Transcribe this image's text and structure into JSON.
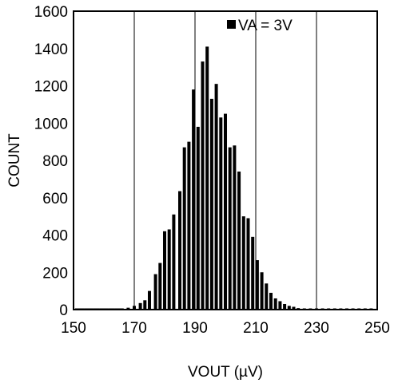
{
  "chart_data": {
    "type": "bar",
    "xlabel": "VOUT (µV)",
    "ylabel": "COUNT",
    "xlim": [
      150,
      250
    ],
    "ylim": [
      0,
      1600
    ],
    "xticks": [
      150,
      170,
      190,
      210,
      230,
      250
    ],
    "yticks": [
      0,
      200,
      400,
      600,
      800,
      1000,
      1200,
      1400,
      1600
    ],
    "grid": true,
    "legend_position": "top-right",
    "series": [
      {
        "name": "VA = 3V",
        "color": "#000000",
        "points": [
          {
            "x": 151,
            "y": 0
          },
          {
            "x": 152,
            "y": 0
          },
          {
            "x": 153,
            "y": 0
          },
          {
            "x": 154,
            "y": 0
          },
          {
            "x": 155,
            "y": 0
          },
          {
            "x": 156,
            "y": 0
          },
          {
            "x": 157,
            "y": 0
          },
          {
            "x": 158,
            "y": 0
          },
          {
            "x": 159,
            "y": 0
          },
          {
            "x": 160,
            "y": 0
          },
          {
            "x": 161,
            "y": 0
          },
          {
            "x": 162,
            "y": 0
          },
          {
            "x": 163,
            "y": 0
          },
          {
            "x": 164,
            "y": 0
          },
          {
            "x": 165,
            "y": 2
          },
          {
            "x": 166,
            "y": 5
          },
          {
            "x": 168,
            "y": 10
          },
          {
            "x": 170,
            "y": 20
          },
          {
            "x": 172,
            "y": 35
          },
          {
            "x": 173.5,
            "y": 50
          },
          {
            "x": 175,
            "y": 100
          },
          {
            "x": 177,
            "y": 190
          },
          {
            "x": 178.5,
            "y": 250
          },
          {
            "x": 180,
            "y": 420
          },
          {
            "x": 181.5,
            "y": 430
          },
          {
            "x": 183,
            "y": 510
          },
          {
            "x": 185,
            "y": 635
          },
          {
            "x": 186.5,
            "y": 870
          },
          {
            "x": 188,
            "y": 900
          },
          {
            "x": 189.5,
            "y": 1180
          },
          {
            "x": 191,
            "y": 980
          },
          {
            "x": 192.5,
            "y": 1330
          },
          {
            "x": 194,
            "y": 1410
          },
          {
            "x": 195.5,
            "y": 1130
          },
          {
            "x": 197,
            "y": 1210
          },
          {
            "x": 198.5,
            "y": 1030
          },
          {
            "x": 200,
            "y": 1050
          },
          {
            "x": 201.5,
            "y": 870
          },
          {
            "x": 203,
            "y": 880
          },
          {
            "x": 204.5,
            "y": 740
          },
          {
            "x": 206,
            "y": 500
          },
          {
            "x": 207.5,
            "y": 490
          },
          {
            "x": 209,
            "y": 390
          },
          {
            "x": 210.5,
            "y": 265
          },
          {
            "x": 212,
            "y": 200
          },
          {
            "x": 213.5,
            "y": 140
          },
          {
            "x": 215,
            "y": 90
          },
          {
            "x": 216.5,
            "y": 60
          },
          {
            "x": 218,
            "y": 45
          },
          {
            "x": 219.5,
            "y": 30
          },
          {
            "x": 221,
            "y": 20
          },
          {
            "x": 222.5,
            "y": 15
          },
          {
            "x": 224,
            "y": 8
          },
          {
            "x": 226,
            "y": 3
          },
          {
            "x": 228,
            "y": 0
          },
          {
            "x": 230,
            "y": 0
          },
          {
            "x": 232,
            "y": 0
          },
          {
            "x": 234,
            "y": 0
          },
          {
            "x": 236,
            "y": 0
          },
          {
            "x": 238,
            "y": 0
          },
          {
            "x": 240,
            "y": 0
          },
          {
            "x": 242,
            "y": 0
          },
          {
            "x": 244,
            "y": 0
          },
          {
            "x": 246,
            "y": 0
          },
          {
            "x": 248,
            "y": 0
          }
        ]
      }
    ]
  }
}
